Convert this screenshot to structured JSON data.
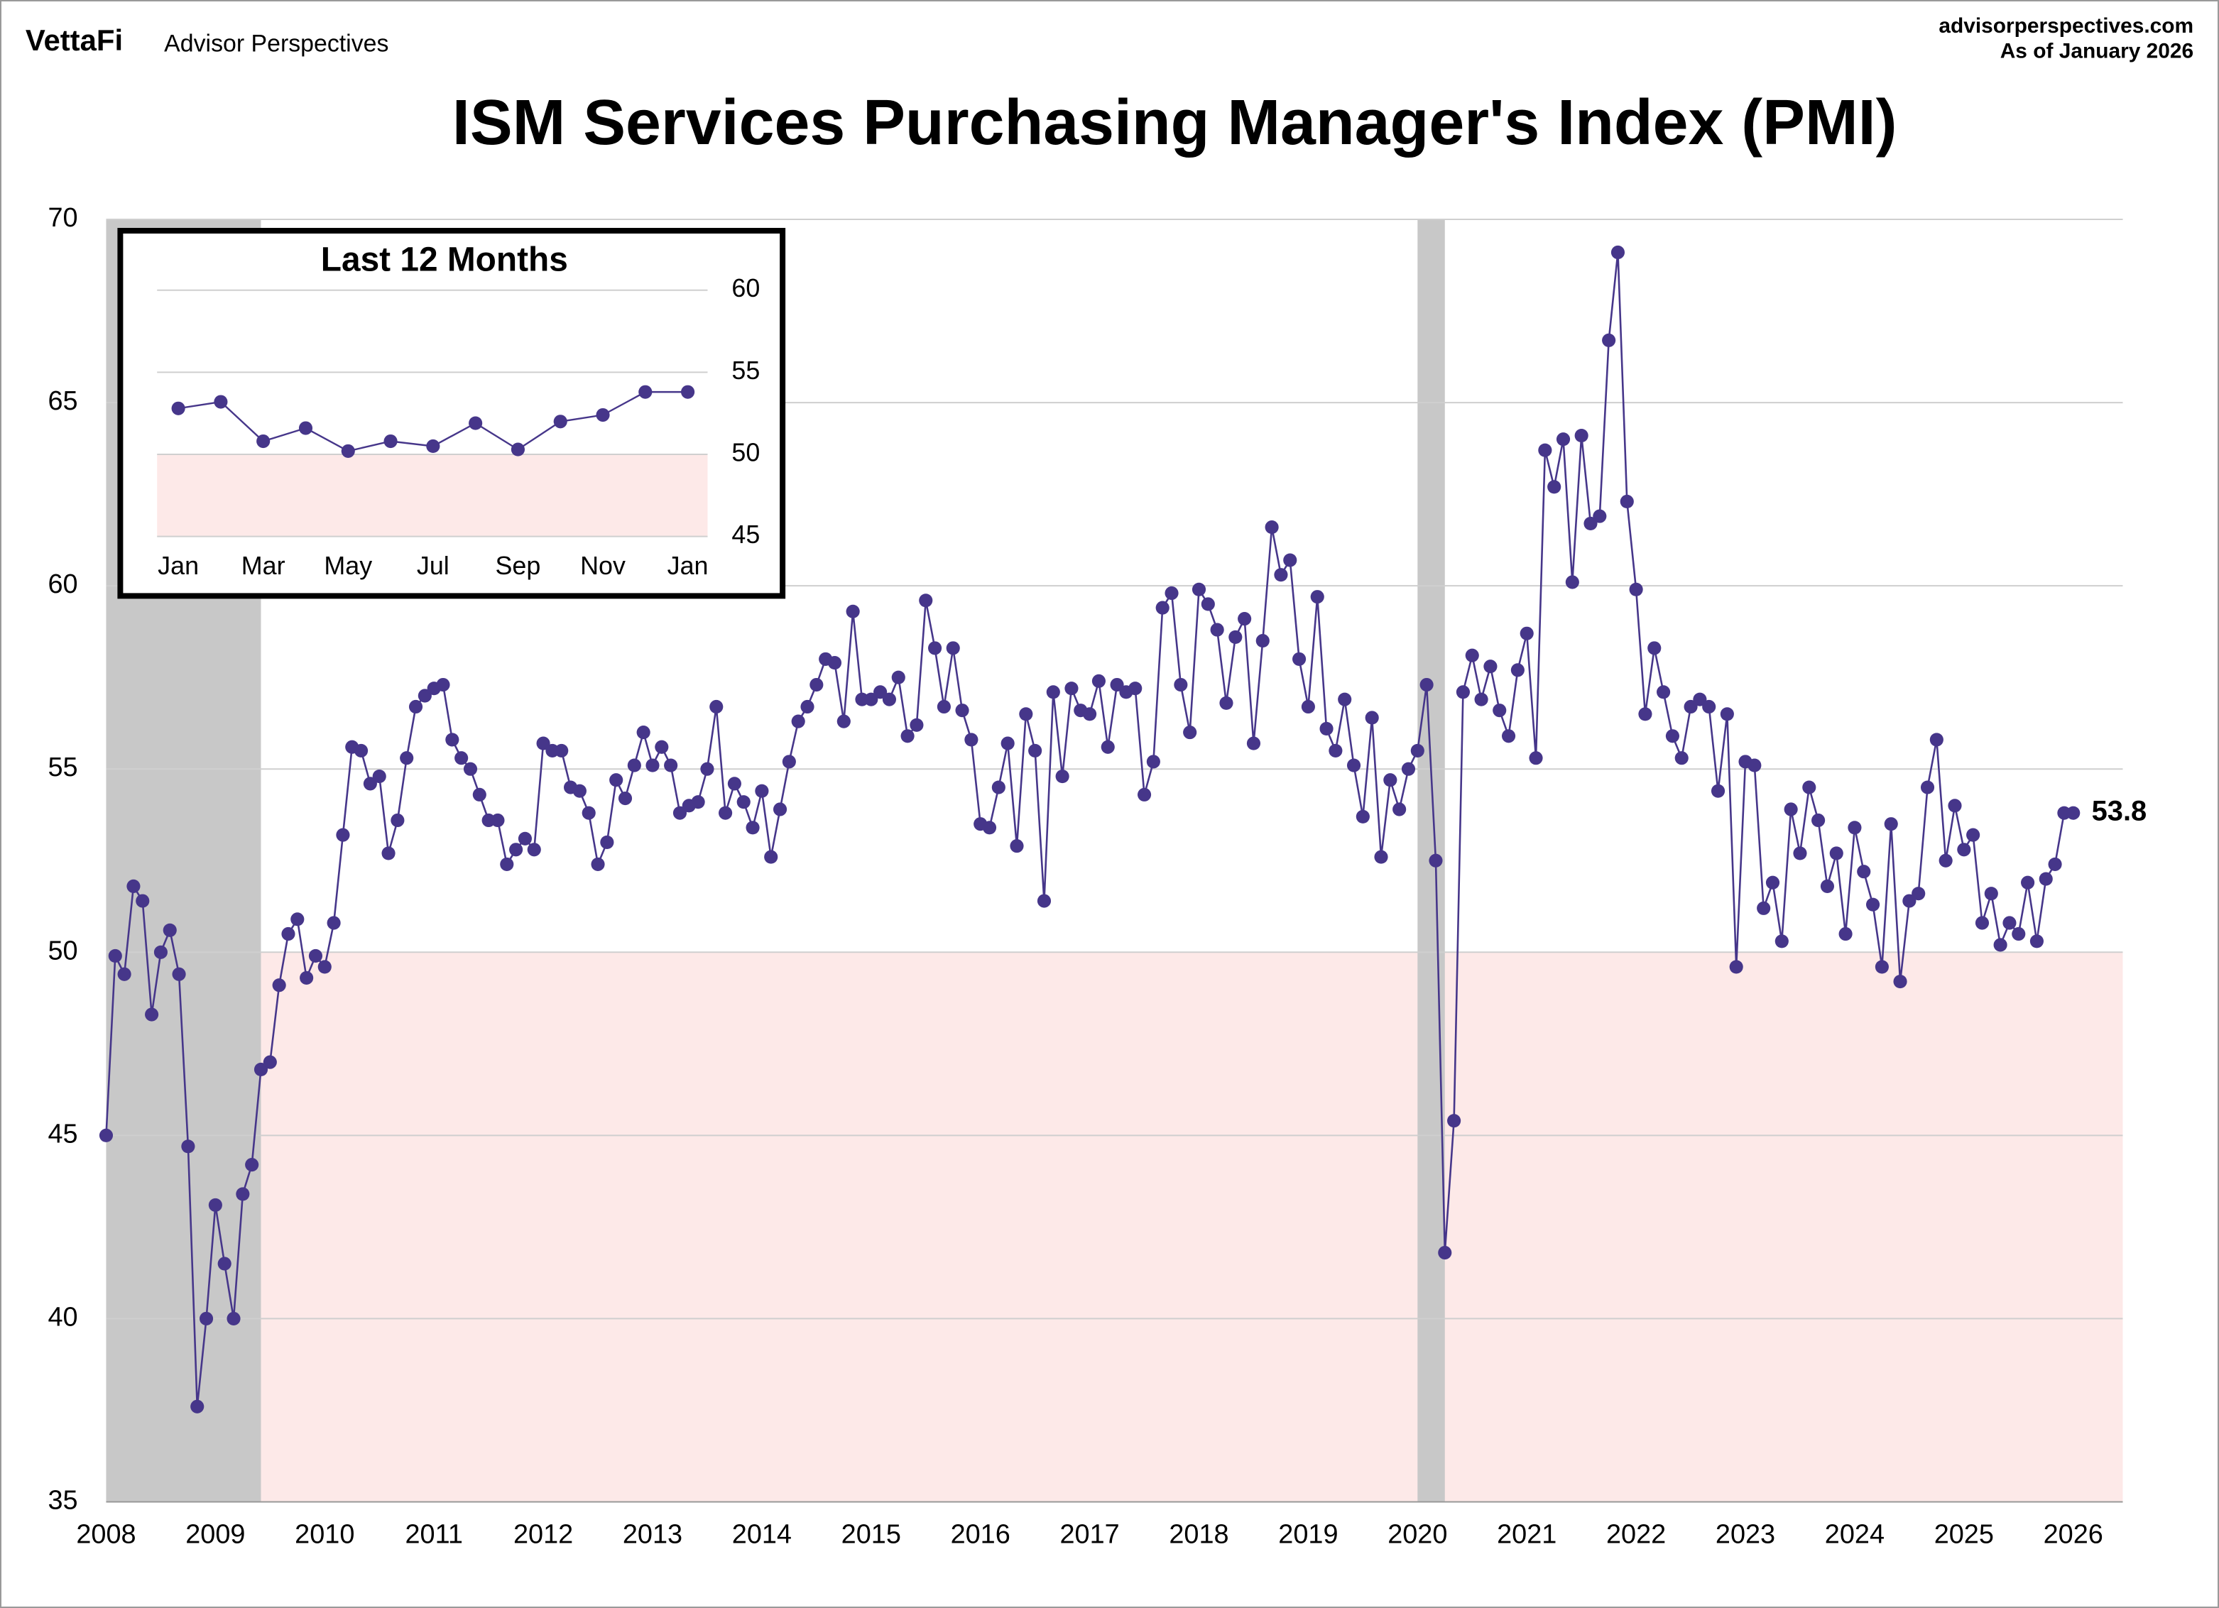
{
  "header": {
    "brand": "VettaFi",
    "brand_sub": "Advisor Perspectives",
    "site": "advisorperspectives.com",
    "as_of": "As of January 2026"
  },
  "chart_data": [
    {
      "type": "line",
      "title": "ISM Services Purchasing Manager's Index (PMI)",
      "categories": [
        "2008",
        null,
        null,
        null,
        null,
        null,
        null,
        null,
        null,
        null,
        null,
        null,
        "2009",
        null,
        null,
        null,
        null,
        null,
        null,
        null,
        null,
        null,
        null,
        null,
        "2010",
        null,
        null,
        null,
        null,
        null,
        null,
        null,
        null,
        null,
        null,
        null,
        "2011",
        null,
        null,
        null,
        null,
        null,
        null,
        null,
        null,
        null,
        null,
        null,
        "2012",
        null,
        null,
        null,
        null,
        null,
        null,
        null,
        null,
        null,
        null,
        null,
        "2013",
        null,
        null,
        null,
        null,
        null,
        null,
        null,
        null,
        null,
        null,
        null,
        "2014",
        null,
        null,
        null,
        null,
        null,
        null,
        null,
        null,
        null,
        null,
        null,
        "2015",
        null,
        null,
        null,
        null,
        null,
        null,
        null,
        null,
        null,
        null,
        null,
        "2016",
        null,
        null,
        null,
        null,
        null,
        null,
        null,
        null,
        null,
        null,
        null,
        "2017",
        null,
        null,
        null,
        null,
        null,
        null,
        null,
        null,
        null,
        null,
        null,
        "2018",
        null,
        null,
        null,
        null,
        null,
        null,
        null,
        null,
        null,
        null,
        null,
        "2019",
        null,
        null,
        null,
        null,
        null,
        null,
        null,
        null,
        null,
        null,
        null,
        "2020",
        null,
        null,
        null,
        null,
        null,
        null,
        null,
        null,
        null,
        null,
        null,
        "2021",
        null,
        null,
        null,
        null,
        null,
        null,
        null,
        null,
        null,
        null,
        null,
        "2022",
        null,
        null,
        null,
        null,
        null,
        null,
        null,
        null,
        null,
        null,
        null,
        "2023",
        null,
        null,
        null,
        null,
        null,
        null,
        null,
        null,
        null,
        null,
        null,
        "2024",
        null,
        null,
        null,
        null,
        null,
        null,
        null,
        null,
        null,
        null,
        null,
        "2025",
        null,
        null,
        null,
        null,
        null,
        null,
        null,
        null,
        null,
        null,
        null,
        "2026"
      ],
      "series": [
        {
          "color": "#46368a",
          "values": [
            45.0,
            49.9,
            49.4,
            51.8,
            51.4,
            48.3,
            50.0,
            50.6,
            49.4,
            44.7,
            37.6,
            40.0,
            43.1,
            41.5,
            40.0,
            43.4,
            44.2,
            46.8,
            47.0,
            49.1,
            50.5,
            50.9,
            49.3,
            49.9,
            49.6,
            50.8,
            53.2,
            55.6,
            55.5,
            54.6,
            54.8,
            52.7,
            53.6,
            55.3,
            56.7,
            57.0,
            57.2,
            57.3,
            55.8,
            55.3,
            55.0,
            54.3,
            53.6,
            53.6,
            52.4,
            52.8,
            53.1,
            52.8,
            55.7,
            55.5,
            55.5,
            54.5,
            54.4,
            53.8,
            52.4,
            53.0,
            54.7,
            54.2,
            55.1,
            56.0,
            55.1,
            55.6,
            55.1,
            53.8,
            54.0,
            54.1,
            55.0,
            56.7,
            53.8,
            54.6,
            54.1,
            53.4,
            54.4,
            52.6,
            53.9,
            55.2,
            56.3,
            56.7,
            57.3,
            58.0,
            57.9,
            56.3,
            59.3,
            56.9,
            56.9,
            57.1,
            56.9,
            57.5,
            55.9,
            56.2,
            59.6,
            58.3,
            56.7,
            58.3,
            56.6,
            55.8,
            53.5,
            53.4,
            54.5,
            55.7,
            52.9,
            56.5,
            55.5,
            51.4,
            57.1,
            54.8,
            57.2,
            56.6,
            56.5,
            57.4,
            55.6,
            57.3,
            57.1,
            57.2,
            54.3,
            55.2,
            59.4,
            59.8,
            57.3,
            56.0,
            59.9,
            59.5,
            58.8,
            56.8,
            58.6,
            59.1,
            55.7,
            58.5,
            61.6,
            60.3,
            60.7,
            58.0,
            56.7,
            59.7,
            56.1,
            55.5,
            56.9,
            55.1,
            53.7,
            56.4,
            52.6,
            54.7,
            53.9,
            55.0,
            55.5,
            57.3,
            52.5,
            41.8,
            45.4,
            57.1,
            58.1,
            56.9,
            57.8,
            56.6,
            55.9,
            57.7,
            58.7,
            55.3,
            63.7,
            62.7,
            64.0,
            60.1,
            64.1,
            61.7,
            61.9,
            66.7,
            69.1,
            62.3,
            59.9,
            56.5,
            58.3,
            57.1,
            55.9,
            55.3,
            56.7,
            56.9,
            56.7,
            54.4,
            56.5,
            49.6,
            55.2,
            55.1,
            51.2,
            51.9,
            50.3,
            53.9,
            52.7,
            54.5,
            53.6,
            51.8,
            52.7,
            50.5,
            53.4,
            52.2,
            51.3,
            49.6,
            53.5,
            49.2,
            51.4,
            51.6,
            54.5,
            55.8,
            52.5,
            54.0,
            52.8,
            53.2,
            50.8,
            51.6,
            50.2,
            50.8,
            50.5,
            51.9,
            50.3,
            52.0,
            52.4,
            53.8,
            53.8
          ]
        }
      ],
      "ylim": [
        35,
        70
      ],
      "yticks": [
        35,
        40,
        45,
        50,
        55,
        60,
        65,
        70
      ],
      "grid": true,
      "contraction_below": 50,
      "contraction_color": "#fde9e8",
      "recession_bands": [
        [
          0,
          17
        ],
        [
          144,
          147
        ]
      ],
      "recession_color": "#c8c8c8"
    },
    {
      "type": "line",
      "title": "Last 12 Months",
      "categories": [
        "Jan",
        null,
        "Mar",
        null,
        "May",
        null,
        "Jul",
        null,
        "Sep",
        null,
        "Nov",
        null,
        "Jan"
      ],
      "series": [
        {
          "color": "#46368a",
          "values": [
            52.8,
            53.2,
            50.8,
            51.6,
            50.2,
            50.8,
            50.5,
            51.9,
            50.3,
            52.0,
            52.4,
            53.8,
            53.8
          ]
        }
      ],
      "ylim": [
        45,
        60
      ],
      "yticks": [
        45,
        50,
        55,
        60
      ],
      "grid": true,
      "contraction_below": 50,
      "contraction_color": "#fde9e8"
    }
  ]
}
